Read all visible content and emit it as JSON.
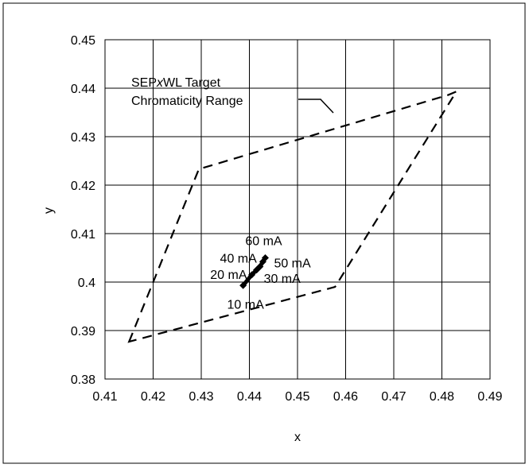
{
  "chart_data": {
    "type": "scatter",
    "title": "",
    "xlabel": "x",
    "ylabel": "y",
    "xlim": [
      0.41,
      0.49
    ],
    "ylim": [
      0.38,
      0.45
    ],
    "grid": true,
    "x_ticks": [
      "0.41",
      "0.42",
      "0.43",
      "0.44",
      "0.45",
      "0.46",
      "0.47",
      "0.48",
      "0.49"
    ],
    "y_ticks": [
      "0.38",
      "0.39",
      "0.4",
      "0.41",
      "0.42",
      "0.43",
      "0.44",
      "0.45"
    ],
    "target_region": {
      "label_parts": [
        "SEP",
        "x",
        "WL Target"
      ],
      "label_line2": "Chromaticity Range",
      "style": "dashed",
      "vertices": [
        {
          "x": 0.415,
          "y": 0.3877
        },
        {
          "x": 0.4295,
          "y": 0.4233
        },
        {
          "x": 0.4813,
          "y": 0.4386
        },
        {
          "x": 0.483,
          "y": 0.4393
        },
        {
          "x": 0.4578,
          "y": 0.399
        }
      ]
    },
    "series": [
      {
        "values": [
          {
            "label": "10 mA",
            "x": 0.4387,
            "y": 0.3993
          },
          {
            "label": "20 mA",
            "x": 0.4405,
            "y": 0.4015
          },
          {
            "label": "30 mA",
            "x": 0.4415,
            "y": 0.4025
          },
          {
            "label": "40 mA",
            "x": 0.4422,
            "y": 0.4032
          },
          {
            "label": "50 mA",
            "x": 0.4428,
            "y": 0.4042
          },
          {
            "label": "60 mA",
            "x": 0.4433,
            "y": 0.405
          }
        ]
      }
    ]
  }
}
